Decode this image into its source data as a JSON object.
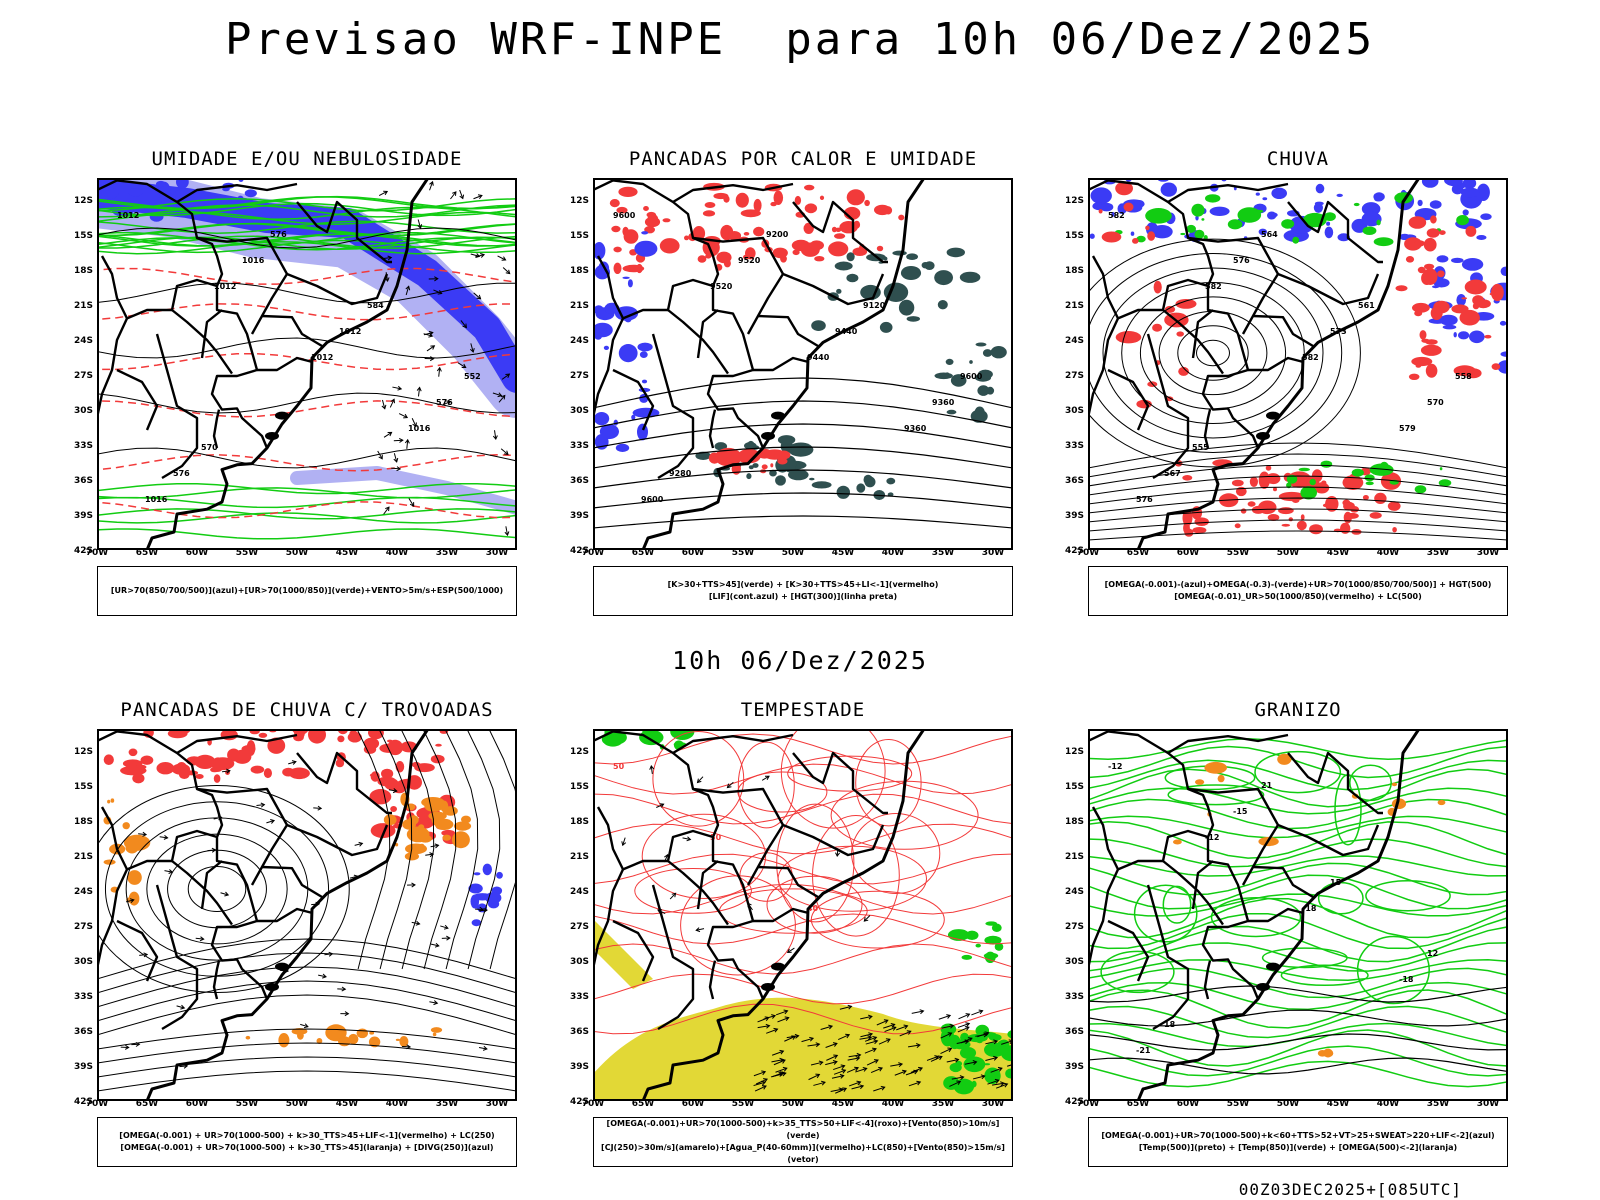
{
  "title": "Previsao WRF-INPE  para 10h 06/Dez/2025",
  "middle_title": "10h 06/Dez/2025",
  "footer": "00Z03DEC2025+[085UTC]",
  "axes": {
    "lat_labels": [
      "12S",
      "15S",
      "18S",
      "21S",
      "24S",
      "27S",
      "30S",
      "33S",
      "36S",
      "39S",
      "42S"
    ],
    "lon_labels": [
      "70W",
      "65W",
      "60W",
      "55W",
      "50W",
      "45W",
      "40W",
      "35W",
      "30W"
    ]
  },
  "colors": {
    "blue": "#3b3bf5",
    "light_blue": "#a9a9f2",
    "green": "#12cc12",
    "red": "#f23a3a",
    "dark_teal": "#2f4f4f",
    "orange": "#f28a1e",
    "yellow": "#e2d836"
  },
  "panels": [
    {
      "id": "umidade",
      "title": "UMIDADE E/OU NEBULOSIDADE",
      "legend": [
        "[UR>70(850/700/500)](azul)+[UR>70(1000/850)](verde)+VENTO>5m/s+ESP(500/1000)"
      ],
      "contour_labels": [
        "1012",
        "1012",
        "1012",
        "1016",
        "1016",
        "1016",
        "1012",
        "576",
        "576",
        "576",
        "584",
        "552",
        "570"
      ]
    },
    {
      "id": "pancadas-calor",
      "title": "PANCADAS POR CALOR E UMIDADE",
      "legend": [
        "[K>30+TTS>45](verde) + [K>30+TTS>45+LI<-1](vermelho)",
        "[LIF](cont.azul) + [HGT(300)](linha preta)"
      ],
      "contour_labels": [
        "9600",
        "9520",
        "9440",
        "9360",
        "9600",
        "9520",
        "9440",
        "9360",
        "9280",
        "9200",
        "9120",
        "9600"
      ]
    },
    {
      "id": "chuva",
      "title": "CHUVA",
      "legend": [
        "[OMEGA(-0.001)-(azul)+OMEGA(-0.3)-(verde)+UR>70(1000/850/700/500)] + HGT(500)",
        "[OMEGA(-0.01)_UR>50(1000/850)(vermelho) + LC(500)"
      ],
      "contour_labels": [
        "582",
        "582",
        "582",
        "579",
        "576",
        "576",
        "573",
        "570",
        "567",
        "564",
        "561",
        "558",
        "555"
      ]
    },
    {
      "id": "pancadas-trovoadas",
      "title": "PANCADAS DE CHUVA C/ TROVOADAS",
      "legend": [
        "[OMEGA(-0.001) + UR>70(1000-500) + k>30_TTS>45+LIF<-1](vermelho) + LC(250)",
        "[OMEGA(-0.001) + UR>70(1000-500) + k>30_TTS>45](laranja) + [DIVG(250)](azul)"
      ],
      "contour_labels": []
    },
    {
      "id": "tempestade",
      "title": "TEMPESTADE",
      "legend": [
        "[OMEGA(-0.001)+UR>70(1000-500)+k>35_TTS>50+LIF<-4](roxo)+[Vento(850)>10m/s](verde)",
        "[CJ(250)>30m/s](amarelo)+[Agua_P(40-60mm)](vermelho)+LC(850)+[Vento(850)>15m/s](vetor)"
      ],
      "contour_labels": [
        "50",
        "50",
        "40"
      ]
    },
    {
      "id": "granizo",
      "title": "GRANIZO",
      "legend": [
        "[OMEGA(-0.001)+UR>70(1000-500)+k<60+TTS>52+VT>25+SWEAT>220+LIF<-2](azul)",
        "[Temp(500)](preto) + [Temp(850)](verde) + [OMEGA(500)<-2](laranja)"
      ],
      "contour_labels": [
        "-12",
        "-12",
        "-18",
        "-18",
        "-21",
        "-15",
        "15",
        "12",
        "18",
        "21"
      ]
    }
  ]
}
